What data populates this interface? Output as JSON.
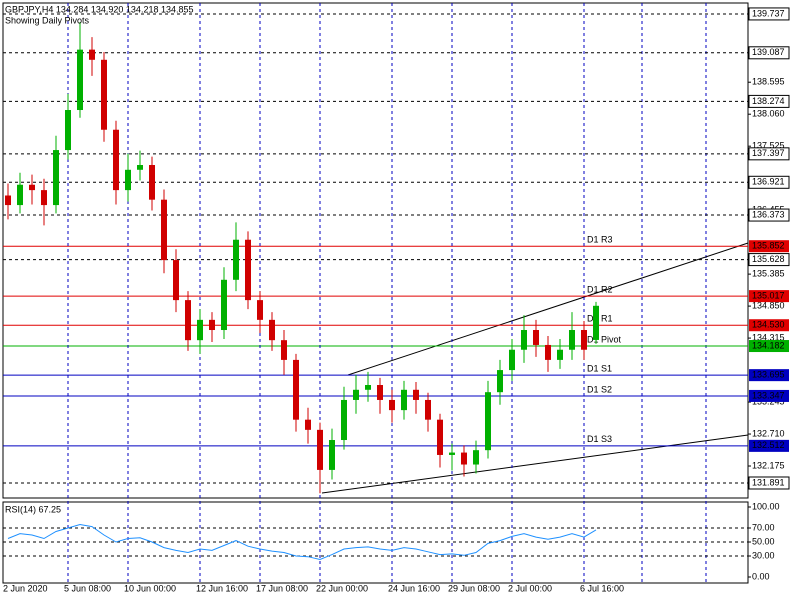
{
  "header": {
    "symbol_line": "GBPJPY,H4  134.284 134.920 134.218 134.855",
    "note": "Showing Daily Pivots"
  },
  "chart_data": [
    {
      "type": "candlestick",
      "categories": [
        "2 Jun 2020",
        null,
        null,
        null,
        null,
        "5 Jun 08:00",
        null,
        null,
        null,
        null,
        "10 Jun 00:00",
        null,
        null,
        null,
        null,
        null,
        "12 Jun 16:00",
        null,
        null,
        null,
        null,
        "17 Jun 08:00",
        null,
        null,
        null,
        null,
        "22 Jun 00:00",
        null,
        null,
        null,
        null,
        null,
        "24 Jun 16:00",
        null,
        null,
        null,
        null,
        "29 Jun 08:00",
        null,
        null,
        null,
        null,
        "2 Jul 00:00",
        null,
        null,
        null,
        null,
        null,
        "6 Jul 16:00",
        null
      ],
      "open": [
        136.7,
        136.54,
        136.88,
        136.79,
        136.54,
        137.46,
        138.13,
        139.14,
        138.97,
        137.8,
        136.79,
        137.13,
        137.21,
        136.63,
        135.62,
        134.95,
        134.28,
        134.62,
        134.45,
        135.29,
        135.96,
        134.95,
        134.62,
        134.28,
        133.95,
        132.95,
        132.78,
        132.11,
        132.61,
        133.28,
        133.45,
        133.53,
        133.28,
        133.11,
        133.45,
        133.28,
        132.95,
        132.36,
        132.4,
        132.2,
        132.44,
        133.41,
        133.78,
        134.12,
        134.45,
        134.2,
        133.95,
        134.12,
        134.45,
        134.284
      ],
      "high": [
        136.9,
        137.08,
        137.05,
        136.98,
        137.7,
        138.4,
        139.6,
        139.35,
        139.1,
        137.95,
        137.4,
        137.45,
        137.35,
        136.8,
        135.8,
        135.1,
        134.8,
        134.75,
        135.5,
        136.25,
        136.1,
        135.1,
        134.75,
        134.45,
        134.05,
        133.15,
        132.9,
        132.8,
        133.5,
        133.7,
        133.75,
        133.65,
        133.45,
        133.6,
        133.58,
        133.4,
        133.05,
        132.55,
        132.52,
        132.6,
        133.6,
        133.95,
        134.3,
        134.7,
        134.62,
        134.35,
        134.3,
        134.75,
        134.6,
        134.92
      ],
      "low": [
        136.3,
        136.4,
        136.55,
        136.2,
        136.4,
        137.3,
        138.0,
        138.7,
        137.6,
        136.55,
        136.6,
        136.95,
        136.45,
        135.4,
        134.75,
        134.1,
        134.05,
        134.25,
        134.3,
        135.1,
        134.8,
        134.4,
        134.1,
        133.7,
        132.75,
        132.55,
        131.72,
        131.95,
        132.45,
        133.05,
        133.25,
        133.05,
        132.9,
        132.95,
        133.05,
        132.75,
        132.15,
        132.1,
        132.0,
        132.05,
        132.3,
        133.2,
        133.6,
        133.9,
        134.0,
        133.75,
        133.8,
        133.95,
        133.95,
        134.218
      ],
      "close": [
        136.54,
        136.88,
        136.79,
        136.54,
        137.46,
        138.13,
        139.14,
        138.97,
        137.8,
        136.79,
        137.13,
        137.21,
        136.63,
        135.62,
        134.95,
        134.28,
        134.62,
        134.45,
        135.29,
        135.96,
        134.95,
        134.62,
        134.28,
        133.95,
        132.95,
        132.78,
        132.11,
        132.61,
        133.28,
        133.45,
        133.53,
        133.28,
        133.11,
        133.45,
        133.28,
        132.95,
        132.36,
        132.4,
        132.2,
        132.44,
        133.41,
        133.78,
        134.12,
        134.45,
        134.2,
        133.95,
        134.12,
        134.45,
        134.12,
        134.855
      ],
      "up_color": "#00b000",
      "down_color": "#d00000",
      "ylim": [
        131.64,
        139.92
      ],
      "yticks": [
        138.595,
        {
          "value": 138.06,
          "label": "138.060"
        },
        137.525,
        136.455,
        135.385,
        {
          "value": 134.85,
          "label": "134.850"
        },
        134.315,
        133.245,
        {
          "value": 132.71,
          "label": "132.710"
        },
        132.175
      ],
      "grid": true,
      "levels": [
        139.737,
        139.087,
        138.274,
        137.397,
        136.921,
        136.373,
        135.628,
        131.891
      ],
      "pivots": [
        {
          "name": "D1 R3",
          "value": 135.852,
          "color": "#e00000"
        },
        {
          "name": "D1 R2",
          "value": 135.017,
          "color": "#e00000"
        },
        {
          "name": "D1 R1",
          "value": 134.53,
          "label": "134.530",
          "color": "#e00000"
        },
        {
          "name": "D1 Pivot",
          "value": 134.182,
          "color": "#00b000"
        },
        {
          "name": "D1 S1",
          "value": 133.695,
          "color": "#0000c0"
        },
        {
          "name": "D1 S2",
          "value": 133.347,
          "color": "#0000c0"
        },
        {
          "name": "D1 S3",
          "value": 132.512,
          "color": "#0000c0"
        }
      ]
    },
    {
      "type": "line",
      "title": "RSI(14) 67.25",
      "values": [
        55,
        62,
        60,
        55,
        65,
        70,
        75,
        72,
        60,
        50,
        55,
        56,
        50,
        42,
        38,
        35,
        40,
        38,
        45,
        52,
        44,
        40,
        37,
        35,
        30,
        29,
        25,
        32,
        40,
        42,
        43,
        40,
        38,
        42,
        40,
        36,
        32,
        33,
        31,
        35,
        48,
        52,
        58,
        62,
        57,
        54,
        57,
        62,
        57,
        67.25
      ],
      "color": "#1e90ff",
      "ylim": [
        0,
        100
      ],
      "yticks": [
        {
          "value": 100,
          "label": "100.00"
        },
        {
          "value": 70,
          "label": "70.00"
        },
        {
          "value": 50,
          "label": "50.00"
        },
        {
          "value": 30,
          "label": "30.00"
        },
        {
          "value": 0,
          "label": "0.00"
        }
      ],
      "levels": [
        70,
        50,
        30
      ]
    }
  ]
}
